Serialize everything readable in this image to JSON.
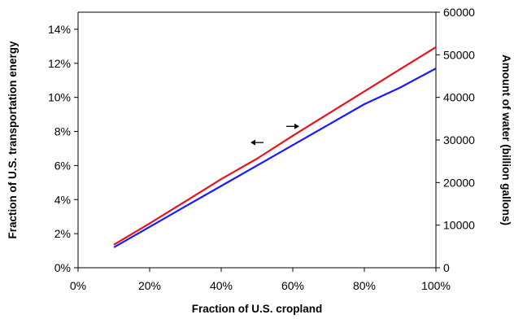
{
  "chart_data": {
    "type": "line",
    "xlabel": "Fraction of U.S. cropland",
    "ylabel_left": "Fraction of U.S. transportation energy",
    "ylabel_right": "Amount of water (billion gallons)",
    "x_ticks": [
      "0%",
      "20%",
      "40%",
      "60%",
      "80%",
      "100%"
    ],
    "y_left_ticks": [
      "0%",
      "2%",
      "4%",
      "6%",
      "8%",
      "10%",
      "12%",
      "14%"
    ],
    "y_right_ticks": [
      "0",
      "10000",
      "20000",
      "30000",
      "40000",
      "50000",
      "60000"
    ],
    "xlim": [
      0,
      1
    ],
    "ylim_left": [
      0,
      0.15
    ],
    "ylim_right": [
      0,
      60000
    ],
    "grid": false,
    "legend": "none",
    "series": [
      {
        "axis": "left",
        "color": "#e8141b",
        "x": [
          0.1,
          0.2,
          0.3,
          0.4,
          0.5,
          0.6,
          0.7,
          0.8,
          0.9,
          1.0
        ],
        "values": [
          0.0135,
          0.026,
          0.039,
          0.052,
          0.064,
          0.0775,
          0.0905,
          0.1035,
          0.1165,
          0.1295
        ]
      },
      {
        "axis": "right",
        "color": "#1a1aff",
        "x": [
          0.1,
          0.2,
          0.3,
          0.4,
          0.5,
          0.6,
          0.7,
          0.8,
          0.9,
          1.0
        ],
        "values": [
          4800,
          9600,
          14400,
          19200,
          24000,
          28800,
          33600,
          38400,
          42300,
          46800
        ]
      }
    ],
    "annotations": [
      {
        "symbol": "left-arrow",
        "x": 0.5,
        "y_left": 0.0735
      },
      {
        "symbol": "right-arrow",
        "x": 0.6,
        "y_right": 33200
      }
    ]
  }
}
